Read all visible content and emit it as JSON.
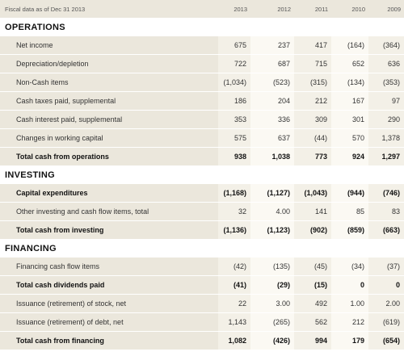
{
  "header": {
    "label": "Fiscal data as of Dec 31 2013",
    "years": [
      "2013",
      "2012",
      "2011",
      "2010",
      "2009"
    ]
  },
  "sections": [
    {
      "title": "OPERATIONS",
      "rows": [
        {
          "label": "Net income",
          "values": [
            "675",
            "237",
            "417",
            "(164)",
            "(364)"
          ],
          "total": false
        },
        {
          "label": "Depreciation/depletion",
          "values": [
            "722",
            "687",
            "715",
            "652",
            "636"
          ],
          "total": false
        },
        {
          "label": "Non-Cash items",
          "values": [
            "(1,034)",
            "(523)",
            "(315)",
            "(134)",
            "(353)"
          ],
          "total": false
        },
        {
          "label": "Cash taxes paid, supplemental",
          "values": [
            "186",
            "204",
            "212",
            "167",
            "97"
          ],
          "total": false
        },
        {
          "label": "Cash interest paid, supplemental",
          "values": [
            "353",
            "336",
            "309",
            "301",
            "290"
          ],
          "total": false
        },
        {
          "label": "Changes in working capital",
          "values": [
            "575",
            "637",
            "(44)",
            "570",
            "1,378"
          ],
          "total": false
        },
        {
          "label": "Total cash from operations",
          "values": [
            "938",
            "1,038",
            "773",
            "924",
            "1,297"
          ],
          "total": true
        }
      ]
    },
    {
      "title": "INVESTING",
      "rows": [
        {
          "label": "Capital expenditures",
          "values": [
            "(1,168)",
            "(1,127)",
            "(1,043)",
            "(944)",
            "(746)"
          ],
          "total": true
        },
        {
          "label": "Other investing and cash flow items, total",
          "values": [
            "32",
            "4.00",
            "141",
            "85",
            "83"
          ],
          "total": false
        },
        {
          "label": "Total cash from investing",
          "values": [
            "(1,136)",
            "(1,123)",
            "(902)",
            "(859)",
            "(663)"
          ],
          "total": true
        }
      ]
    },
    {
      "title": "FINANCING",
      "rows": [
        {
          "label": "Financing cash flow items",
          "values": [
            "(42)",
            "(135)",
            "(45)",
            "(34)",
            "(37)"
          ],
          "total": false
        },
        {
          "label": "Total cash dividends paid",
          "values": [
            "(41)",
            "(29)",
            "(15)",
            "0",
            "0"
          ],
          "total": true
        },
        {
          "label": "Issuance (retirement) of stock, net",
          "values": [
            "22",
            "3.00",
            "492",
            "1.00",
            "2.00"
          ],
          "total": false
        },
        {
          "label": "Issuance (retirement) of debt, net",
          "values": [
            "1,143",
            "(265)",
            "562",
            "212",
            "(619)"
          ],
          "total": false
        },
        {
          "label": "Total cash from financing",
          "values": [
            "1,082",
            "(426)",
            "994",
            "179",
            "(654)"
          ],
          "total": true
        }
      ]
    }
  ]
}
